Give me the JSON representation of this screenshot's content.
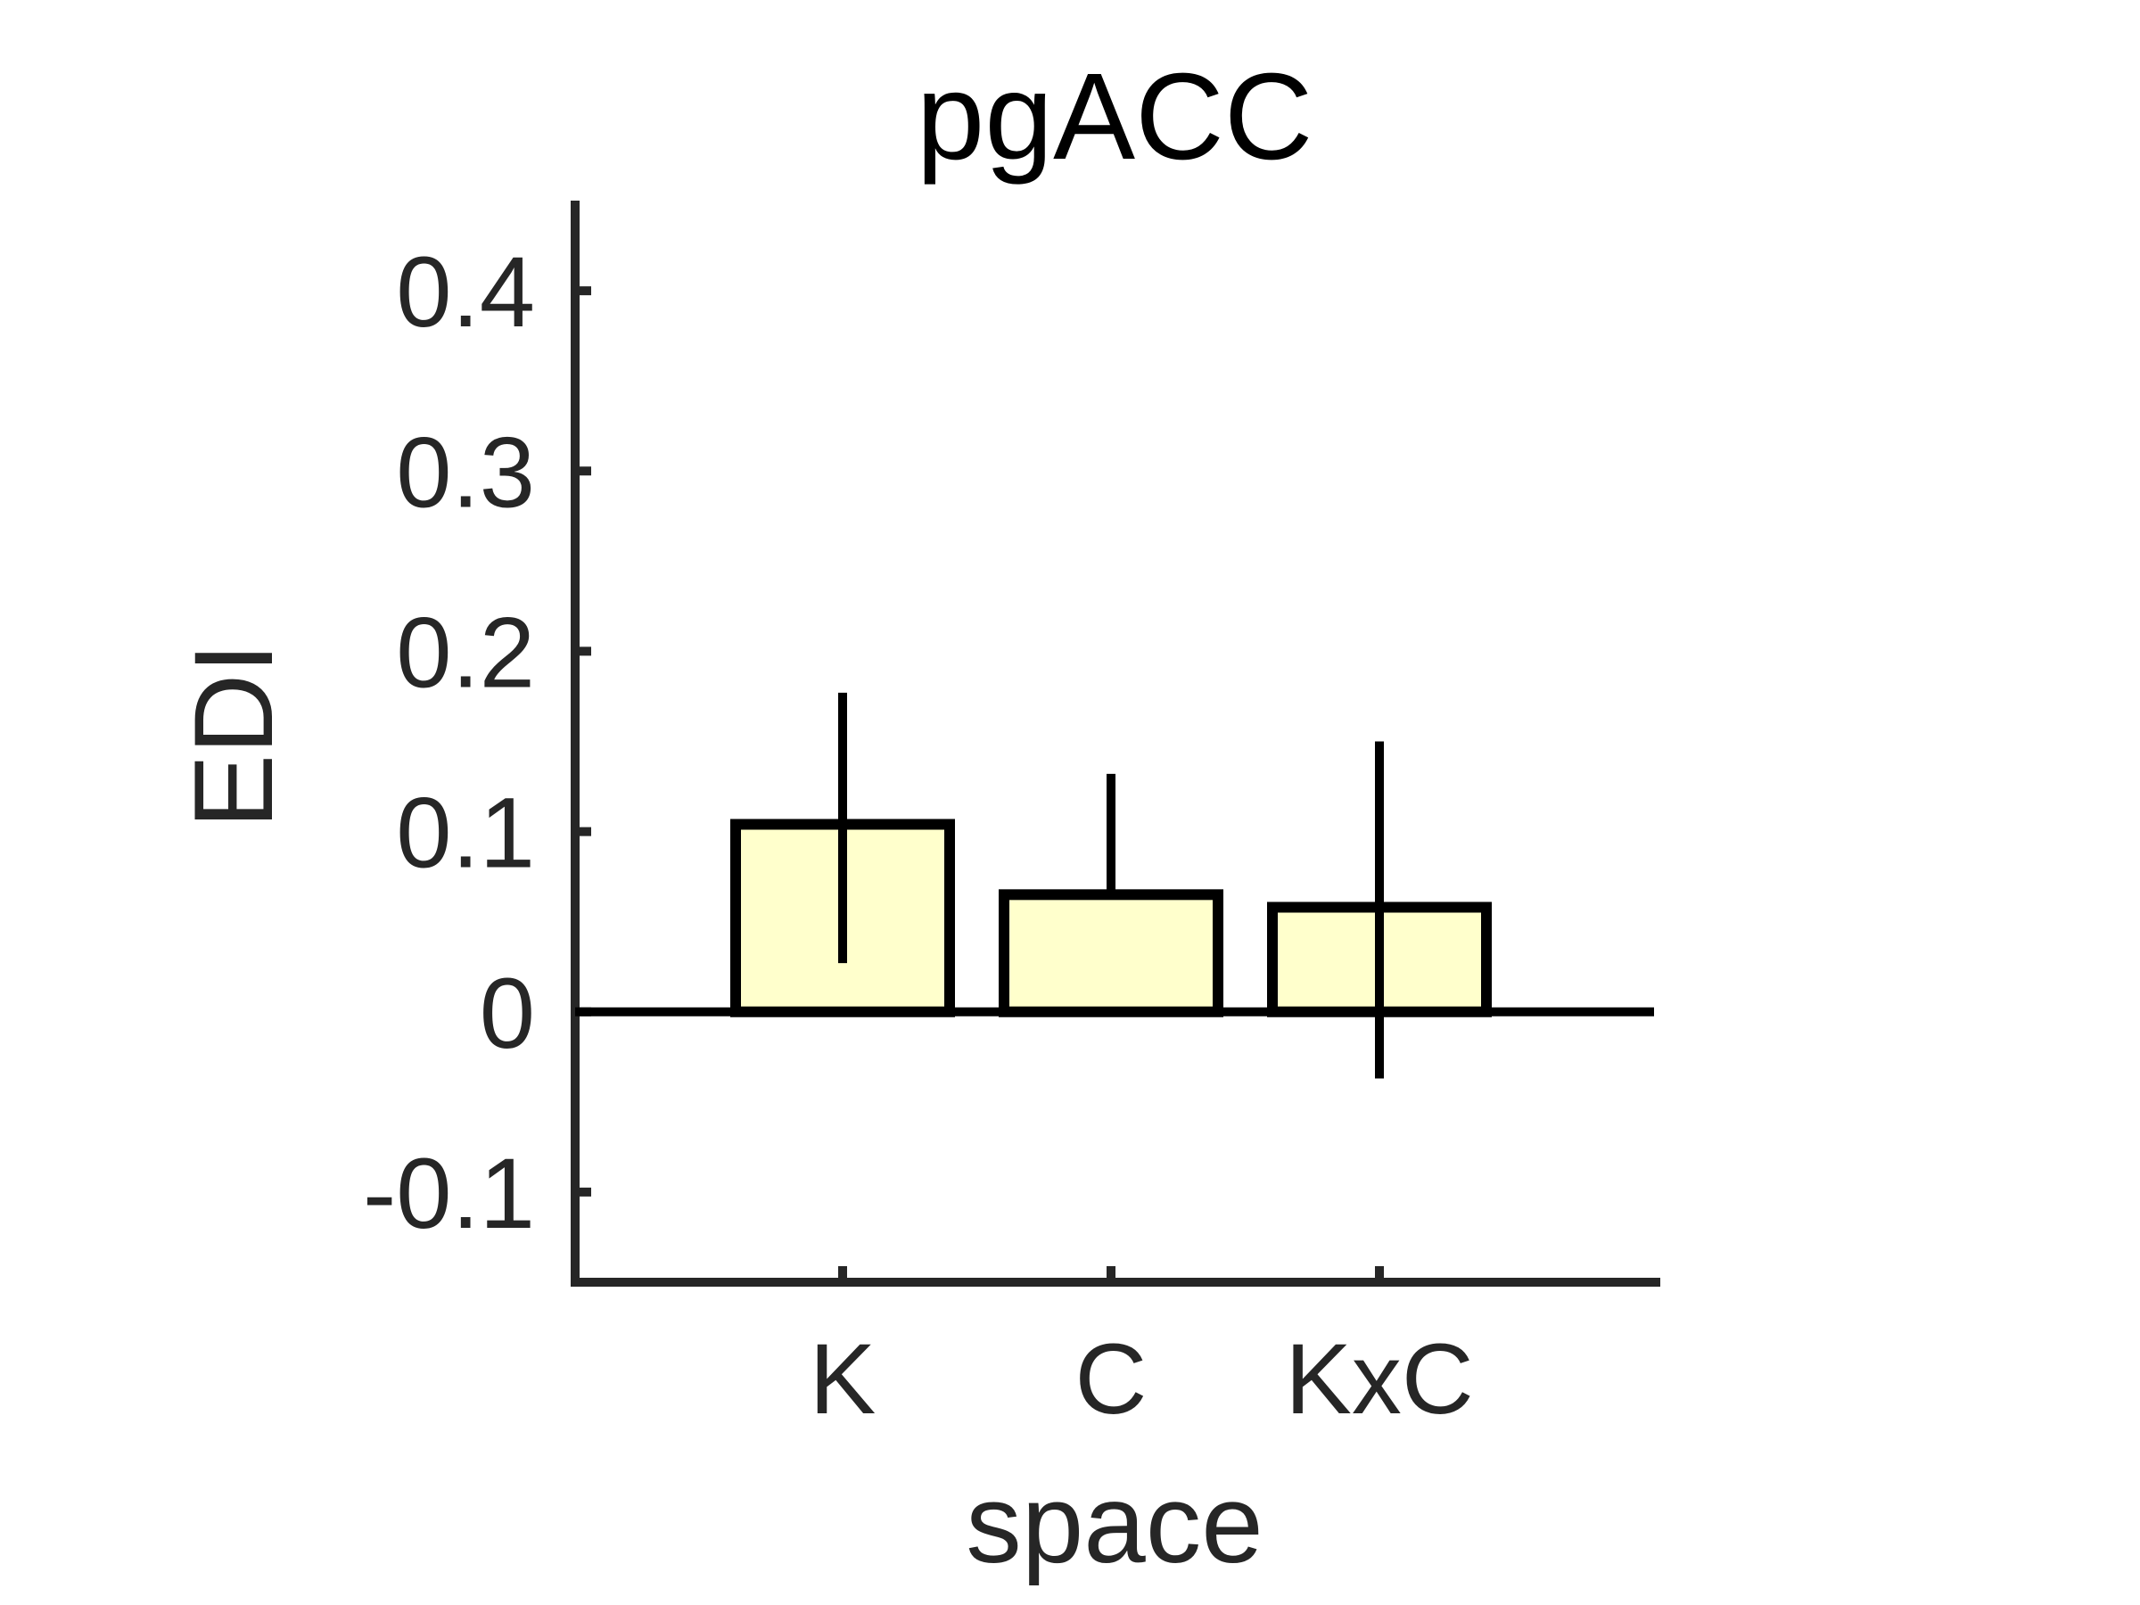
{
  "chart_data": {
    "type": "bar",
    "title": "pgACC",
    "xlabel": "space",
    "ylabel": "EDI",
    "categories": [
      "K",
      "C",
      "KxC"
    ],
    "values": [
      0.104,
      0.065,
      0.058
    ],
    "error_low": [
      0.027,
      0.065,
      -0.037
    ],
    "error_high": [
      0.177,
      0.132,
      0.15
    ],
    "yticks": [
      -0.1,
      0,
      0.1,
      0.2,
      0.3,
      0.4
    ],
    "ytick_labels": [
      "-0.1",
      "0",
      "0.1",
      "0.2",
      "0.3",
      "0.4"
    ],
    "ylim": [
      -0.15,
      0.45
    ],
    "bar_color": "#ffffcc",
    "edge_color": "#000000",
    "grid": false
  }
}
